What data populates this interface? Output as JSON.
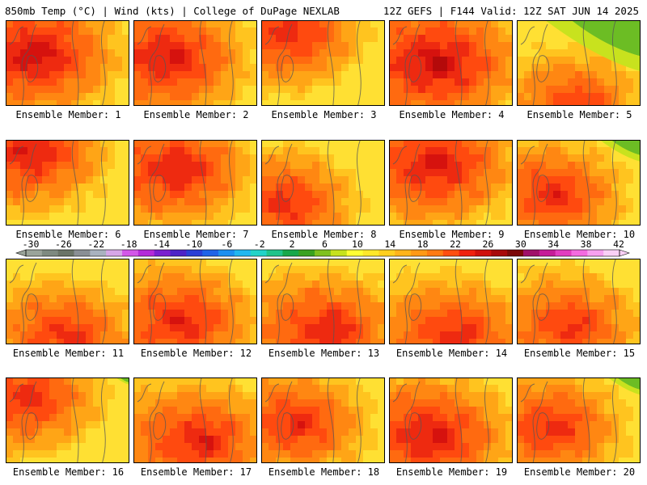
{
  "header": {
    "left": "850mb Temp (°C) | Wind (kts) | College of DuPage NEXLAB",
    "right": "12Z GEFS | F144 Valid: 12Z SAT JUN 14 2025"
  },
  "panels": [
    {
      "caption": "Ensemble Member: 1",
      "level": 0.62,
      "hot": [
        0.25,
        0.35
      ],
      "green": 0
    },
    {
      "caption": "Ensemble Member: 2",
      "level": 0.58,
      "hot": [
        0.3,
        0.4
      ],
      "green": 0
    },
    {
      "caption": "Ensemble Member: 3",
      "level": 0.5,
      "hot": [
        0.25,
        0.1
      ],
      "green": 0
    },
    {
      "caption": "Ensemble Member: 4",
      "level": 0.66,
      "hot": [
        0.4,
        0.45
      ],
      "green": 0
    },
    {
      "caption": "Ensemble Member: 5",
      "level": 0.45,
      "hot": [
        0.5,
        0.9
      ],
      "green": 0.35
    },
    {
      "caption": "Ensemble Member: 6",
      "level": 0.55,
      "hot": [
        0.2,
        0.1
      ],
      "green": 0
    },
    {
      "caption": "Ensemble Member: 7",
      "level": 0.56,
      "hot": [
        0.35,
        0.3
      ],
      "green": 0
    },
    {
      "caption": "Ensemble Member: 8",
      "level": 0.48,
      "hot": [
        0.2,
        0.7
      ],
      "green": 0
    },
    {
      "caption": "Ensemble Member: 9",
      "level": 0.6,
      "hot": [
        0.4,
        0.25
      ],
      "green": 0
    },
    {
      "caption": "Ensemble Member: 10",
      "level": 0.5,
      "hot": [
        0.3,
        0.6
      ],
      "green": 0.15
    },
    {
      "caption": "Ensemble Member: 11",
      "level": 0.52,
      "hot": [
        0.5,
        0.85
      ],
      "green": 0
    },
    {
      "caption": "Ensemble Member: 12",
      "level": 0.55,
      "hot": [
        0.4,
        0.7
      ],
      "green": 0
    },
    {
      "caption": "Ensemble Member: 13",
      "level": 0.58,
      "hot": [
        0.55,
        0.8
      ],
      "green": 0
    },
    {
      "caption": "Ensemble Member: 14",
      "level": 0.56,
      "hot": [
        0.55,
        0.85
      ],
      "green": 0
    },
    {
      "caption": "Ensemble Member: 15",
      "level": 0.5,
      "hot": [
        0.45,
        0.75
      ],
      "green": 0
    },
    {
      "caption": "Ensemble Member: 16",
      "level": 0.48,
      "hot": [
        0.2,
        0.2
      ],
      "green": 0.05
    },
    {
      "caption": "Ensemble Member: 17",
      "level": 0.58,
      "hot": [
        0.55,
        0.7
      ],
      "green": 0
    },
    {
      "caption": "Ensemble Member: 18",
      "level": 0.5,
      "hot": [
        0.3,
        0.5
      ],
      "green": 0
    },
    {
      "caption": "Ensemble Member: 19",
      "level": 0.6,
      "hot": [
        0.35,
        0.65
      ],
      "green": 0
    },
    {
      "caption": "Ensemble Member: 20",
      "level": 0.5,
      "hot": [
        0.3,
        0.55
      ],
      "green": 0.12
    }
  ],
  "colorbar": {
    "labels": [
      "-30",
      "-26",
      "-22",
      "-18",
      "-14",
      "-10",
      "-6",
      "-2",
      "2",
      "6",
      "10",
      "14",
      "18",
      "22",
      "26",
      "30",
      "34",
      "38",
      "42"
    ],
    "colors": [
      "#9aa49a",
      "#7e8a80",
      "#6a7467",
      "#8a8f95",
      "#a9b2bf",
      "#d6a6e8",
      "#d357e8",
      "#b42ad9",
      "#7a1fd0",
      "#4d23c7",
      "#2a3fd6",
      "#1f63e8",
      "#1c8ff0",
      "#20b7f0",
      "#22d3c8",
      "#1fc48a",
      "#17a84a",
      "#3aa220",
      "#7fc11f",
      "#c6e21d",
      "#ffff33",
      "#ffe82a",
      "#ffcf1f",
      "#ffb41a",
      "#ff9916",
      "#ff7a12",
      "#ff4e10",
      "#f0200f",
      "#d0100c",
      "#a8080a",
      "#7c0808",
      "#a0106a",
      "#c51c98",
      "#e23cc0",
      "#f46ae0",
      "#f7a0ef",
      "#fad0f6"
    ]
  }
}
